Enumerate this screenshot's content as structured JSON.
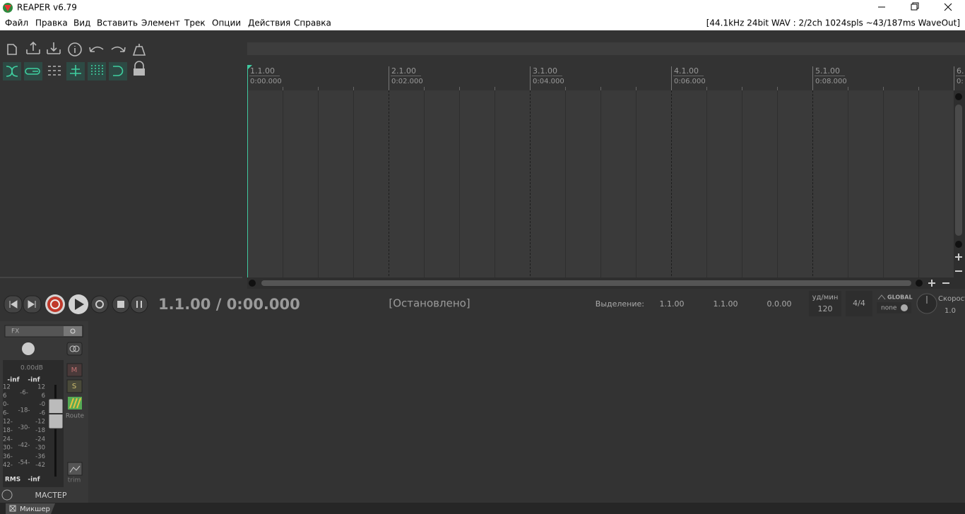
{
  "window": {
    "title": "REAPER v6.79",
    "status": "[44.1kHz 24bit WAV : 2/2ch 1024spls ~43/187ms WaveOut]"
  },
  "menu": [
    "Файл",
    "Правка",
    "Вид",
    "Вставить",
    "Элемент",
    "Трек",
    "Опции",
    "Действия",
    "Справка"
  ],
  "ruler": [
    {
      "bar": "1.1.00",
      "time": "0:00.000"
    },
    {
      "bar": "2.1.00",
      "time": "0:02.000"
    },
    {
      "bar": "3.1.00",
      "time": "0:04.000"
    },
    {
      "bar": "4.1.00",
      "time": "0:06.000"
    },
    {
      "bar": "5.1.00",
      "time": "0:08.000"
    },
    {
      "bar": "6.",
      "time": "0:"
    }
  ],
  "transport": {
    "position": "1.1.00 / 0:00.000",
    "state": "[Остановлено]",
    "selection_label": "Выделение:",
    "selection": [
      "1.1.00",
      "1.1.00",
      "0.0.00"
    ],
    "bpm_label": "уд/мин",
    "bpm": "120",
    "signature": "4/4",
    "global": "GLOBAL",
    "global_value": "none",
    "rate_label": "Скорост",
    "rate": "1.0"
  },
  "master": {
    "fx": "FX",
    "volume": "0.00dB",
    "peaks": [
      "-inf",
      "-inf"
    ],
    "scale_left": [
      "12",
      "6",
      "0-",
      "6-",
      "12-",
      "18-",
      "24-",
      "30-",
      "36-",
      "42-"
    ],
    "scale_mid": [
      "-6-",
      "-18-",
      "-30-",
      "-42-",
      "-54-"
    ],
    "scale_right": [
      "12",
      "6",
      "-0",
      "-6",
      "-12",
      "-18",
      "-24",
      "-30",
      "-36",
      "-42"
    ],
    "mute": "M",
    "solo": "S",
    "route": "Route",
    "trim": "trim",
    "rms_label": "RMS",
    "rms": "-inf",
    "name": "МАСТЕР"
  },
  "tab": "Микшер"
}
